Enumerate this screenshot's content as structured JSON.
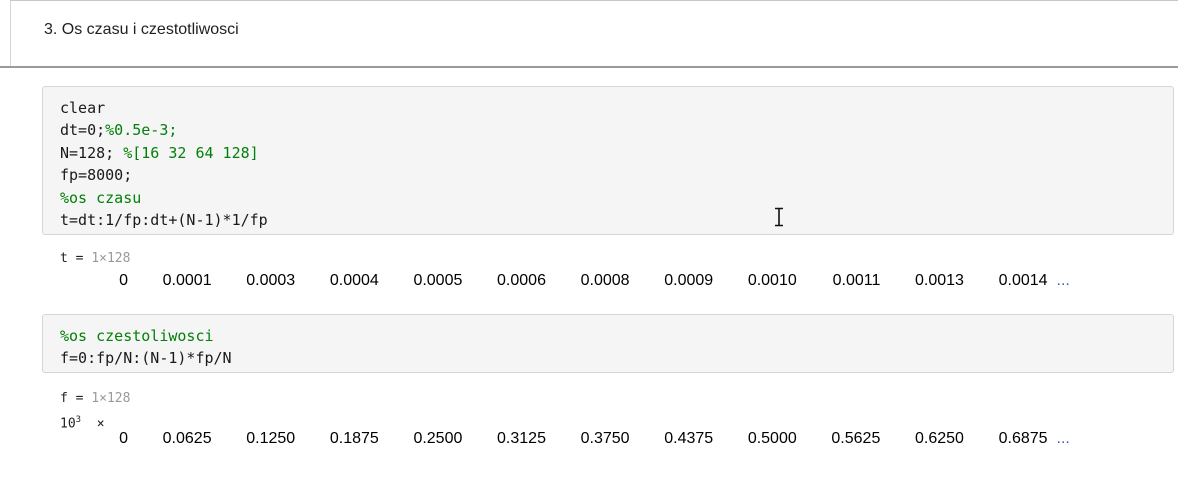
{
  "section": {
    "heading": "3. Os czasu i czestotliwosci"
  },
  "code_cell_1": {
    "lines": [
      {
        "code": "clear",
        "comment": ""
      },
      {
        "code": "dt=0;",
        "comment": "%0.5e-3;"
      },
      {
        "code": "N=128; ",
        "comment": "%[16 32 64 128]"
      },
      {
        "code": "fp=8000;",
        "comment": ""
      },
      {
        "code": "",
        "comment": "%os czasu"
      },
      {
        "code": "t=dt:1/fp:dt+(N-1)*1/fp",
        "comment": ""
      }
    ]
  },
  "output_1": {
    "var_name": "t",
    "equals": " = ",
    "size": "1×128",
    "values": [
      "0",
      "0.0001",
      "0.0003",
      "0.0004",
      "0.0005",
      "0.0006",
      "0.0008",
      "0.0009",
      "0.0010",
      "0.0011",
      "0.0013",
      "0.0014"
    ],
    "ellipsis": "..."
  },
  "code_cell_2": {
    "lines": [
      {
        "code": "",
        "comment": "%os czestoliwosci"
      },
      {
        "code": "f=0:fp/N:(N-1)*fp/N",
        "comment": ""
      }
    ]
  },
  "output_2": {
    "var_name": "f",
    "equals": " = ",
    "size": "1×128",
    "scale_base": "10",
    "scale_exp": "3",
    "scale_times": "×",
    "values": [
      "0",
      "0.0625",
      "0.1250",
      "0.1875",
      "0.2500",
      "0.3125",
      "0.3750",
      "0.4375",
      "0.5000",
      "0.5625",
      "0.6250",
      "0.6875"
    ],
    "ellipsis": "..."
  },
  "icons": {
    "cursor": "text-cursor-icon"
  }
}
